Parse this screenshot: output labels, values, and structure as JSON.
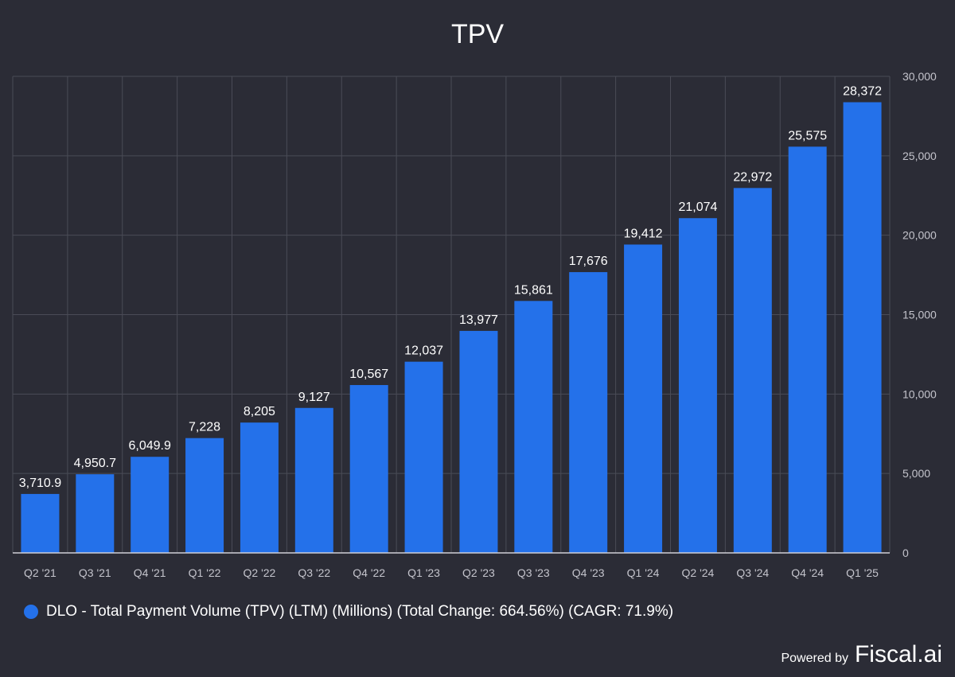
{
  "chart_data": {
    "type": "bar",
    "title": "TPV",
    "categories": [
      "Q2 '21",
      "Q3 '21",
      "Q4 '21",
      "Q1 '22",
      "Q2 '22",
      "Q3 '22",
      "Q4 '22",
      "Q1 '23",
      "Q2 '23",
      "Q3 '23",
      "Q4 '23",
      "Q1 '24",
      "Q2 '24",
      "Q3 '24",
      "Q4 '24",
      "Q1 '25"
    ],
    "series": [
      {
        "name": "DLO - Total Payment Volume (TPV) (LTM) (Millions) (Total Change: 664.56%) (CAGR: 71.9%)",
        "values": [
          3710.9,
          4950.7,
          6049.9,
          7228,
          8205,
          9127,
          10567,
          12037,
          13977,
          15861,
          17676,
          19412,
          21074,
          22972,
          25575,
          28372
        ],
        "labels": [
          "3,710.9",
          "4,950.7",
          "6,049.9",
          "7,228",
          "8,205",
          "9,127",
          "10,567",
          "12,037",
          "13,977",
          "15,861",
          "17,676",
          "19,412",
          "21,074",
          "22,972",
          "25,575",
          "28,372"
        ]
      }
    ],
    "ylim": [
      0,
      30000
    ],
    "yticks": [
      0,
      5000,
      10000,
      15000,
      20000,
      25000,
      30000
    ],
    "ytick_labels": [
      "0",
      "5,000",
      "10,000",
      "15,000",
      "20,000",
      "25,000",
      "30,000"
    ],
    "y_axis_side": "right",
    "grid": true,
    "legend_position": "bottom-left",
    "bar_color": "#2471ea",
    "background_color": "#2b2c36",
    "grid_color": "#4a4b56"
  },
  "footer": {
    "powered_by": "Powered by",
    "brand": "Fiscal.ai"
  }
}
